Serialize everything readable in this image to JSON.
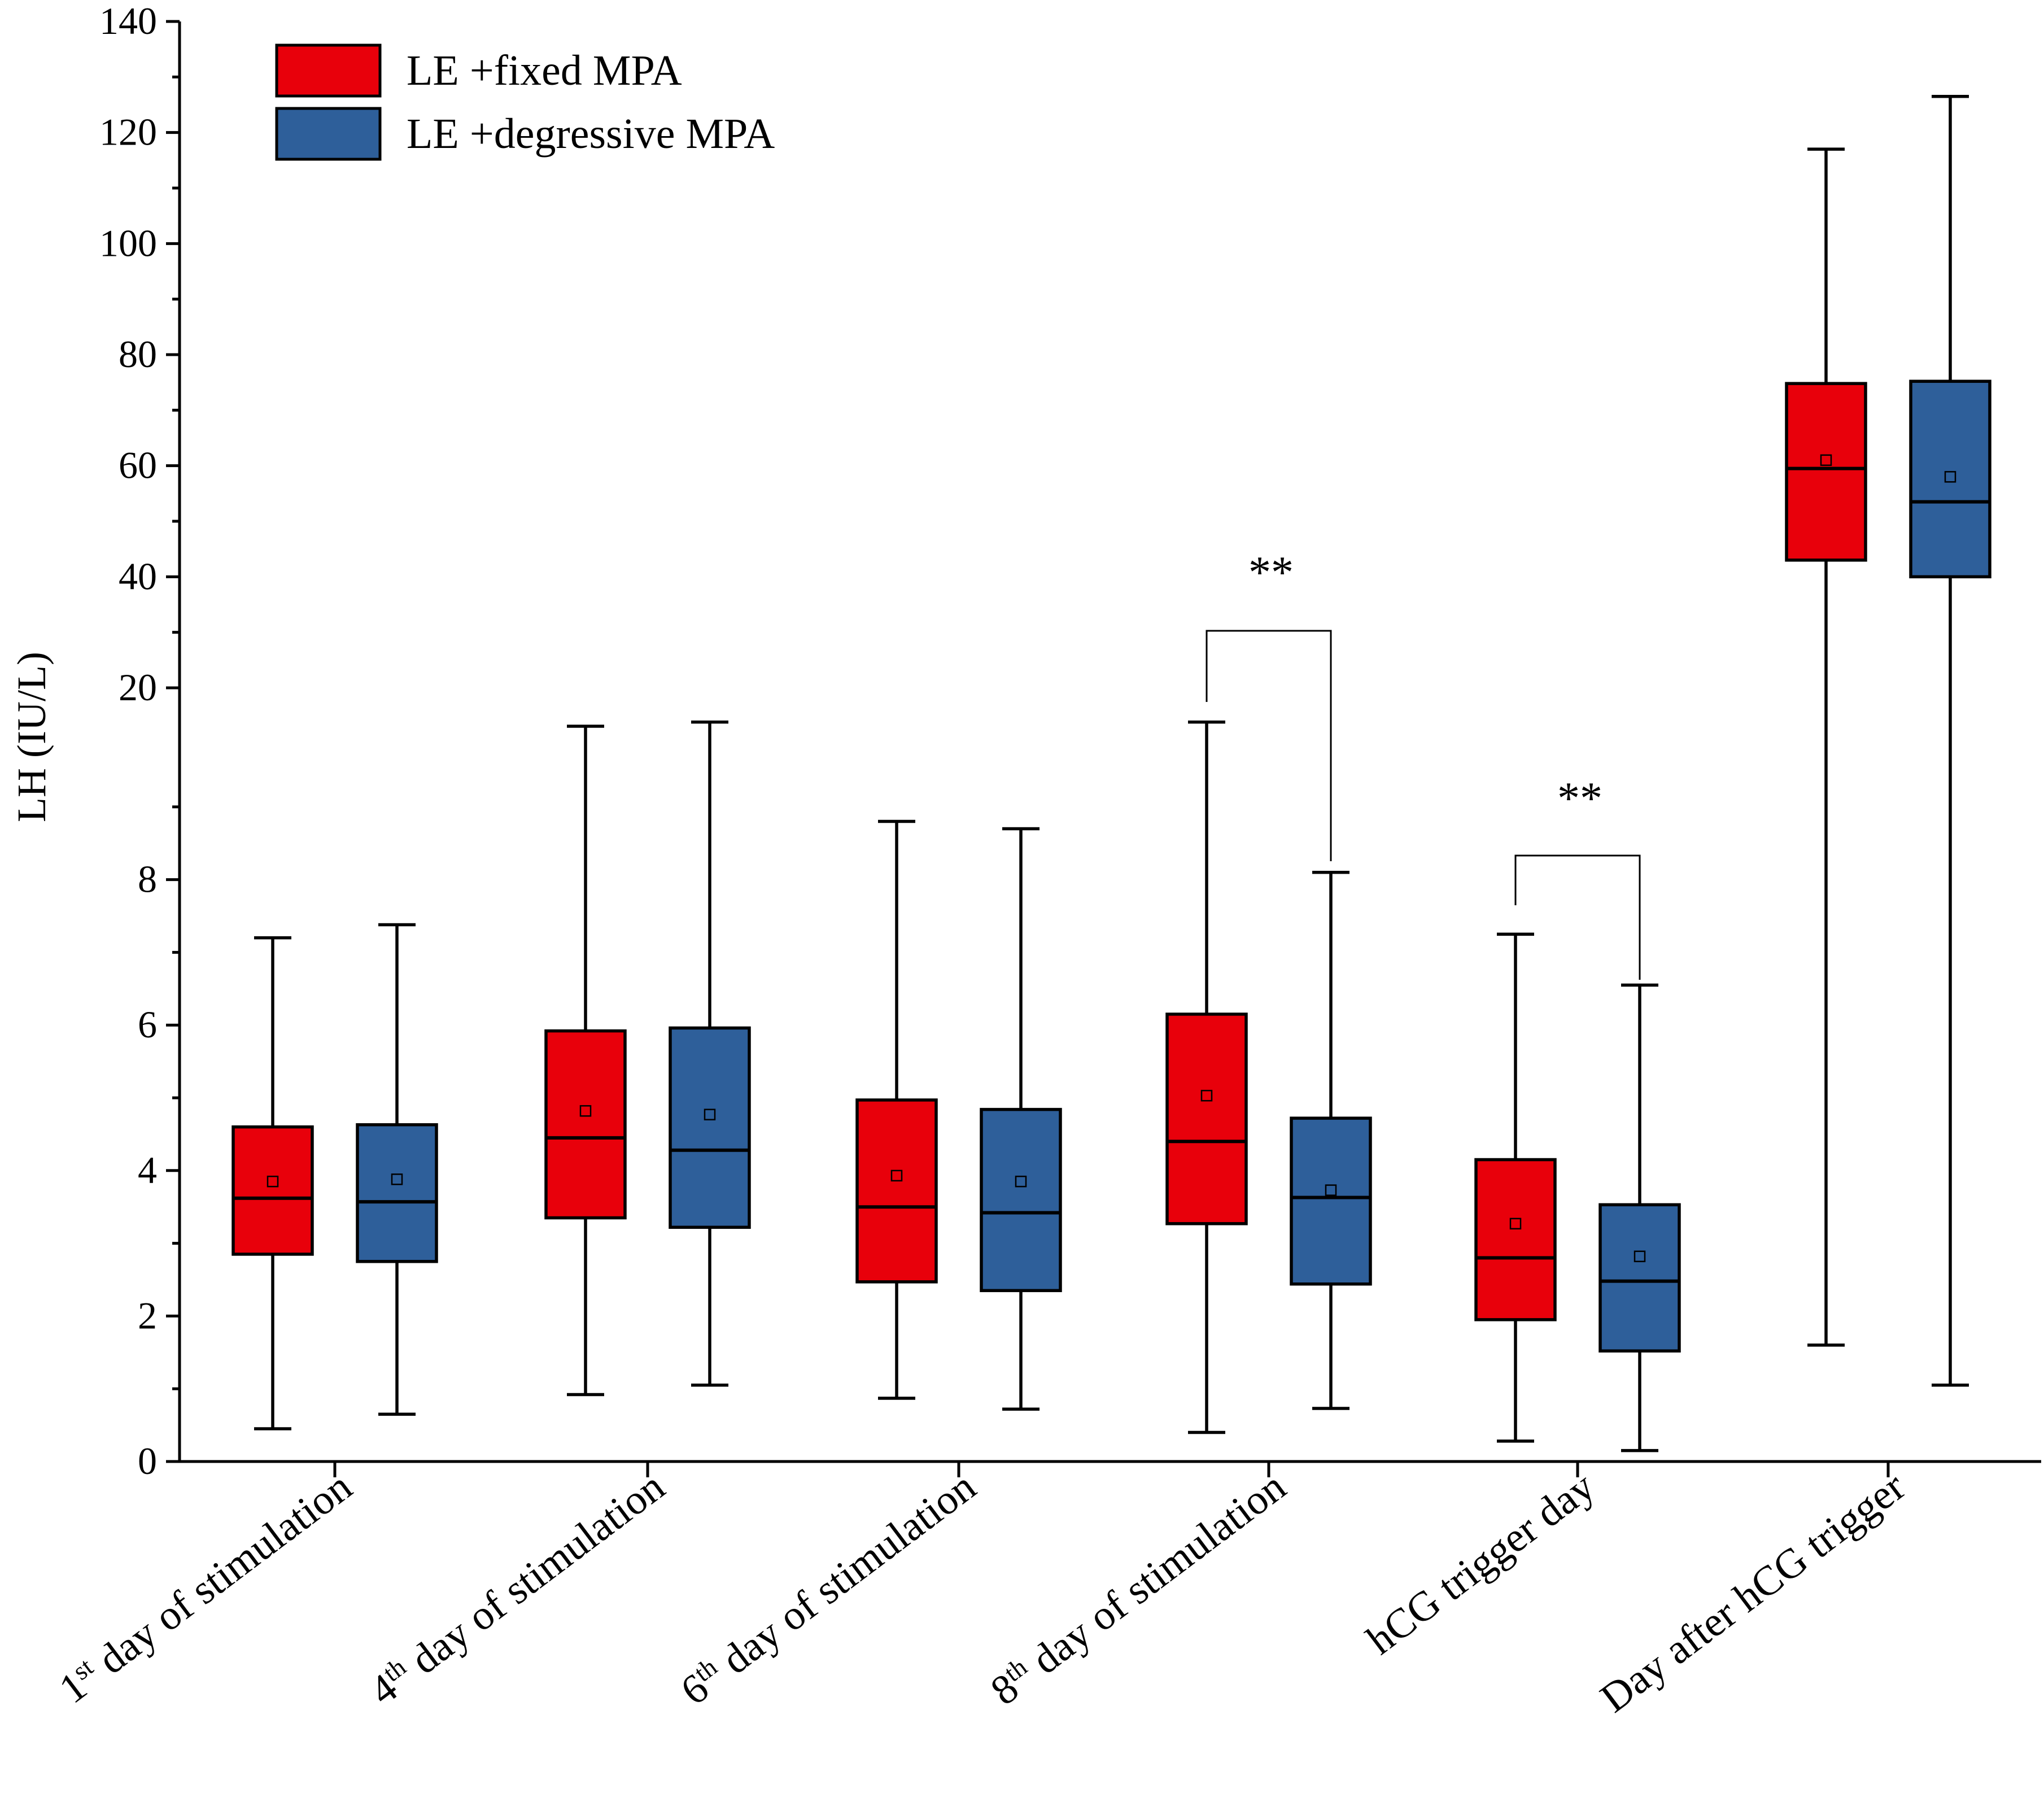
{
  "chart_data": {
    "type": "boxplot",
    "title": "",
    "ylabel": "LH (IU/L)",
    "xlabel": "",
    "y_axis": {
      "lower_segment": {
        "range": [
          0,
          10
        ],
        "ticks": [
          0,
          2,
          4,
          6,
          8
        ]
      },
      "upper_segment": {
        "range": [
          10,
          140
        ],
        "ticks": [
          20,
          40,
          60,
          80,
          100,
          120,
          140
        ]
      },
      "note": "scale break at 10: lower segment 0-10, upper segment 10-140 compressed"
    },
    "categories": [
      {
        "label": "day of stimulation",
        "ordinal": "1",
        "sup": "st"
      },
      {
        "label": "day of stimulation",
        "ordinal": "4",
        "sup": "th"
      },
      {
        "label": "day of stimulation",
        "ordinal": "6",
        "sup": "th"
      },
      {
        "label": "day of stimulation",
        "ordinal": "8",
        "sup": "th"
      },
      {
        "label": "hCG trigger day",
        "ordinal": "",
        "sup": ""
      },
      {
        "label": "Day after hCG trigger",
        "ordinal": "",
        "sup": ""
      }
    ],
    "legend": {
      "position": "top-left",
      "entries": [
        {
          "label": "LE +fixed MPA",
          "color": "#e8000b"
        },
        {
          "label": "LE +degressive MPA",
          "color": "#2e5f9a"
        }
      ]
    },
    "series": [
      {
        "name": "LE +fixed MPA",
        "color": "#e8000b",
        "boxes": [
          {
            "min": 0.45,
            "q1": 2.85,
            "median": 3.62,
            "q3": 4.6,
            "max": 7.2,
            "mean": 3.85
          },
          {
            "min": 0.92,
            "q1": 3.35,
            "median": 4.45,
            "q3": 5.92,
            "max": 11.7,
            "mean": 4.82
          },
          {
            "min": 0.87,
            "q1": 2.47,
            "median": 3.5,
            "q3": 4.97,
            "max": 8.8,
            "mean": 3.93
          },
          {
            "min": 0.4,
            "q1": 3.27,
            "median": 4.4,
            "q3": 6.15,
            "max": 12.6,
            "mean": 5.03
          },
          {
            "min": 0.28,
            "q1": 1.95,
            "median": 2.8,
            "q3": 4.15,
            "max": 7.25,
            "mean": 3.27
          },
          {
            "min": 1.6,
            "q1": 43.0,
            "median": 59.5,
            "q3": 74.8,
            "max": 117.0,
            "mean": 61.0
          }
        ]
      },
      {
        "name": "LE +degressive MPA",
        "color": "#2e5f9a",
        "boxes": [
          {
            "min": 0.65,
            "q1": 2.75,
            "median": 3.57,
            "q3": 4.63,
            "max": 7.38,
            "mean": 3.88
          },
          {
            "min": 1.05,
            "q1": 3.22,
            "median": 4.28,
            "q3": 5.96,
            "max": 12.6,
            "mean": 4.77
          },
          {
            "min": 0.72,
            "q1": 2.35,
            "median": 3.42,
            "q3": 4.84,
            "max": 8.7,
            "mean": 3.85
          },
          {
            "min": 0.73,
            "q1": 2.44,
            "median": 3.63,
            "q3": 4.72,
            "max": 8.1,
            "mean": 3.73
          },
          {
            "min": 0.15,
            "q1": 1.52,
            "median": 2.48,
            "q3": 3.53,
            "max": 6.55,
            "mean": 2.82
          },
          {
            "min": 1.05,
            "q1": 40.0,
            "median": 53.5,
            "q3": 75.2,
            "max": 126.5,
            "mean": 58.0
          }
        ]
      }
    ],
    "annotations": [
      {
        "text": "**",
        "category_index": 3,
        "between_series": [
          0,
          1
        ]
      },
      {
        "text": "**",
        "category_index": 4,
        "between_series": [
          0,
          1
        ]
      }
    ]
  }
}
